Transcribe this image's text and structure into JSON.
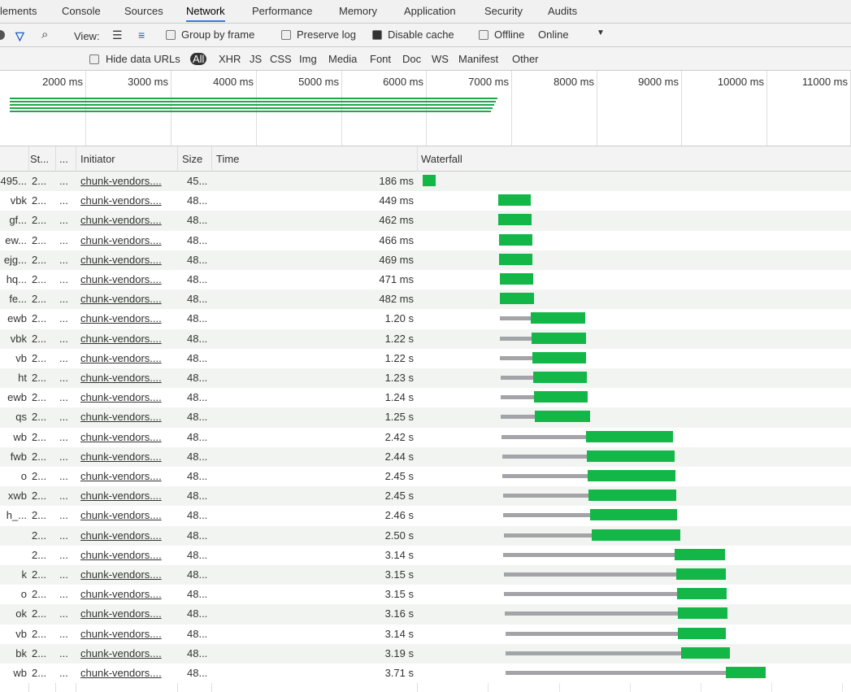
{
  "tabs": [
    "lements",
    "Console",
    "Sources",
    "Network",
    "Performance",
    "Memory",
    "Application",
    "Security",
    "Audits"
  ],
  "toolbar": {
    "view_label": "View:",
    "group_by_frame": "Group by frame",
    "preserve_log": "Preserve log",
    "disable_cache": "Disable cache",
    "offline": "Offline",
    "throttle": "Online"
  },
  "filters": {
    "hide_data_urls": "Hide data URLs",
    "types": [
      "All",
      "XHR",
      "JS",
      "CSS",
      "Img",
      "Media",
      "Font",
      "Doc",
      "WS",
      "Manifest",
      "Other"
    ]
  },
  "overview_ticks": [
    "2000 ms",
    "3000 ms",
    "4000 ms",
    "5000 ms",
    "6000 ms",
    "7000 ms",
    "8000 ms",
    "9000 ms",
    "10000 ms",
    "11000 ms"
  ],
  "table": {
    "columns": [
      "St...",
      "...",
      "Initiator",
      "Size",
      "Time",
      "Waterfall"
    ],
    "rows": [
      [
        "495...",
        "2...",
        "...",
        "chunk-vendors....",
        "45...",
        "186 ms"
      ],
      [
        "vbk",
        "2...",
        "...",
        "chunk-vendors....",
        "48...",
        "449 ms"
      ],
      [
        "gf...",
        "2...",
        "...",
        "chunk-vendors....",
        "48...",
        "462 ms"
      ],
      [
        "ew...",
        "2...",
        "...",
        "chunk-vendors....",
        "48...",
        "466 ms"
      ],
      [
        "ejg...",
        "2...",
        "...",
        "chunk-vendors....",
        "48...",
        "469 ms"
      ],
      [
        "hq...",
        "2...",
        "...",
        "chunk-vendors....",
        "48...",
        "471 ms"
      ],
      [
        "fe...",
        "2...",
        "...",
        "chunk-vendors....",
        "48...",
        "482 ms"
      ],
      [
        "ewb",
        "2...",
        "...",
        "chunk-vendors....",
        "48...",
        "1.20 s"
      ],
      [
        "vbk",
        "2...",
        "...",
        "chunk-vendors....",
        "48...",
        "1.22 s"
      ],
      [
        "vb",
        "2...",
        "...",
        "chunk-vendors....",
        "48...",
        "1.22 s"
      ],
      [
        "ht",
        "2...",
        "...",
        "chunk-vendors....",
        "48...",
        "1.23 s"
      ],
      [
        "ewb",
        "2...",
        "...",
        "chunk-vendors....",
        "48...",
        "1.24 s"
      ],
      [
        "qs",
        "2...",
        "...",
        "chunk-vendors....",
        "48...",
        "1.25 s"
      ],
      [
        "wb",
        "2...",
        "...",
        "chunk-vendors....",
        "48...",
        "2.42 s"
      ],
      [
        "fwb",
        "2...",
        "...",
        "chunk-vendors....",
        "48...",
        "2.44 s"
      ],
      [
        "o",
        "2...",
        "...",
        "chunk-vendors....",
        "48...",
        "2.45 s"
      ],
      [
        "xwb",
        "2...",
        "...",
        "chunk-vendors....",
        "48...",
        "2.45 s"
      ],
      [
        "h_...",
        "2...",
        "...",
        "chunk-vendors....",
        "48...",
        "2.46 s"
      ],
      [
        null,
        "2...",
        "...",
        "chunk-vendors....",
        "48...",
        "2.50 s"
      ],
      [
        null,
        "2...",
        "...",
        "chunk-vendors....",
        "48...",
        "3.14 s"
      ],
      [
        "k",
        "2...",
        "...",
        "chunk-vendors....",
        "48...",
        "3.15 s"
      ],
      [
        "o",
        "2...",
        "...",
        "chunk-vendors....",
        "48...",
        "3.15 s"
      ],
      [
        "ok",
        "2...",
        "...",
        "chunk-vendors....",
        "48...",
        "3.16 s"
      ],
      [
        "vb",
        "2...",
        "...",
        "chunk-vendors....",
        "48...",
        "3.14 s"
      ],
      [
        "bk",
        "2...",
        "...",
        "chunk-vendors....",
        "48...",
        "3.19 s"
      ],
      [
        "wb",
        "2...",
        "...",
        "chunk-vendors....",
        "48...",
        "3.71 s"
      ]
    ]
  }
}
